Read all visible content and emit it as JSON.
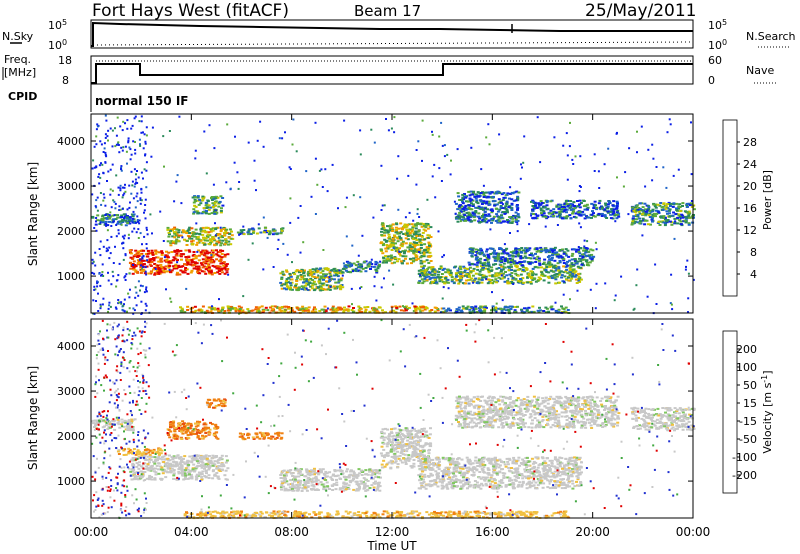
{
  "header": {
    "site": "Fort Hays West (fitACF)",
    "beam": "Beam 17",
    "date": "25/May/2011"
  },
  "top_panels": {
    "nsky": {
      "label": "N.Sky",
      "tick_top": "10^5",
      "tick_bottom": "10^0",
      "right_label": "N.Search",
      "right_tick_top": "10^5",
      "right_tick_bottom": "10^0"
    },
    "freq": {
      "label_line1": "Freq.",
      "label_line2": "[MHz]",
      "tick_top": "18",
      "tick_bottom": "8",
      "right_label": "Nave",
      "right_tick_top": "60",
      "right_tick_bottom": "0"
    },
    "cpid": {
      "label": "CPID",
      "value": "normal 150 IF"
    }
  },
  "chart_data": [
    {
      "type": "heatmap",
      "ylabel": "Slant Range [km]",
      "xlabel": "Time UT",
      "x_ticks": [
        "00:00",
        "04:00",
        "08:00",
        "12:00",
        "16:00",
        "20:00",
        "00:00"
      ],
      "y_ticks": [
        "1000",
        "2000",
        "3000",
        "4000"
      ],
      "y_tick_values": [
        1000,
        2000,
        3000,
        4000
      ],
      "ylim": [
        180,
        4600
      ],
      "xlim_hours": [
        0,
        24
      ],
      "colorbar": {
        "label": "Power [dB]",
        "ticks": [
          "4",
          "8",
          "12",
          "16",
          "20",
          "24",
          "28"
        ],
        "tick_values": [
          4,
          8,
          12,
          16,
          20,
          24,
          28
        ],
        "range": [
          0,
          32
        ],
        "colors": [
          "#0a1ee6",
          "#1e64c8",
          "#2a8a5a",
          "#5aaa3a",
          "#c8c800",
          "#f0a000",
          "#f06000",
          "#e00000"
        ]
      },
      "features": [
        {
          "t0": 0.0,
          "t1": 1.7,
          "r0": 2150,
          "r1": 2400,
          "level": 0.25
        },
        {
          "t0": 1.5,
          "t1": 5.4,
          "r0": 1050,
          "r1": 1600,
          "level": 0.9
        },
        {
          "t0": 3.0,
          "t1": 5.6,
          "r0": 1700,
          "r1": 2100,
          "level": 0.55
        },
        {
          "t0": 4.0,
          "t1": 5.2,
          "r0": 2400,
          "r1": 2800,
          "level": 0.35
        },
        {
          "t0": 5.8,
          "t1": 7.6,
          "r0": 1950,
          "r1": 2100,
          "level": 0.3
        },
        {
          "t0": 7.5,
          "t1": 10.0,
          "r0": 700,
          "r1": 1200,
          "level": 0.45
        },
        {
          "t0": 10.0,
          "t1": 11.5,
          "r0": 1100,
          "r1": 1350,
          "level": 0.25
        },
        {
          "t0": 11.5,
          "t1": 13.5,
          "r0": 1300,
          "r1": 2200,
          "level": 0.5
        },
        {
          "t0": 13.0,
          "t1": 19.5,
          "r0": 850,
          "r1": 1250,
          "level": 0.4
        },
        {
          "t0": 15.0,
          "t1": 20.0,
          "r0": 1250,
          "r1": 1650,
          "level": 0.25
        },
        {
          "t0": 14.5,
          "t1": 17.0,
          "r0": 2200,
          "r1": 2900,
          "level": 0.2
        },
        {
          "t0": 17.5,
          "t1": 21.0,
          "r0": 2300,
          "r1": 2700,
          "level": 0.2
        },
        {
          "t0": 21.5,
          "t1": 24.0,
          "r0": 2150,
          "r1": 2650,
          "level": 0.3
        },
        {
          "t0": 3.5,
          "t1": 14.0,
          "r0": 200,
          "r1": 350,
          "level": 0.65
        },
        {
          "t0": 14.0,
          "t1": 19.0,
          "r0": 200,
          "r1": 350,
          "level": 0.3
        }
      ]
    },
    {
      "type": "heatmap",
      "ylabel": "Slant Range [km]",
      "xlabel": "Time UT",
      "x_ticks": [
        "00:00",
        "04:00",
        "08:00",
        "12:00",
        "16:00",
        "20:00",
        "00:00"
      ],
      "y_ticks": [
        "1000",
        "2000",
        "3000",
        "4000"
      ],
      "y_tick_values": [
        1000,
        2000,
        3000,
        4000
      ],
      "ylim": [
        180,
        4600
      ],
      "xlim_hours": [
        0,
        24
      ],
      "colorbar": {
        "label": "Velocity [m s^-1]",
        "ticks": [
          "200",
          "100",
          "50",
          "15",
          "-15",
          "-50",
          "-100",
          "-200"
        ],
        "tick_values": [
          200,
          100,
          50,
          15,
          -15,
          -50,
          -100,
          -200
        ],
        "colors": [
          "#2030d0",
          "#3878c8",
          "#40a840",
          "#80c860",
          "#c8c8c8",
          "#f0c040",
          "#f08010",
          "#e85010",
          "#e00000"
        ]
      },
      "features": [
        {
          "t0": 0.0,
          "t1": 1.7,
          "r0": 2150,
          "r1": 2400,
          "kind": "gray"
        },
        {
          "t0": 1.5,
          "t1": 5.4,
          "r0": 1050,
          "r1": 1600,
          "kind": "gray"
        },
        {
          "t0": 3.0,
          "t1": 5.0,
          "r0": 1950,
          "r1": 2350,
          "kind": "orange"
        },
        {
          "t0": 4.5,
          "t1": 5.3,
          "r0": 2650,
          "r1": 2850,
          "kind": "orange"
        },
        {
          "t0": 5.8,
          "t1": 7.6,
          "r0": 1950,
          "r1": 2100,
          "kind": "orange"
        },
        {
          "t0": 7.5,
          "t1": 11.5,
          "r0": 800,
          "r1": 1300,
          "kind": "gray"
        },
        {
          "t0": 11.5,
          "t1": 13.5,
          "r0": 1300,
          "r1": 2200,
          "kind": "gray"
        },
        {
          "t0": 13.0,
          "t1": 19.5,
          "r0": 850,
          "r1": 1550,
          "kind": "gray"
        },
        {
          "t0": 14.5,
          "t1": 21.0,
          "r0": 2200,
          "r1": 2900,
          "kind": "gray"
        },
        {
          "t0": 21.5,
          "t1": 24.0,
          "r0": 2150,
          "r1": 2650,
          "kind": "gray"
        },
        {
          "t0": 1.0,
          "t1": 2.8,
          "r0": 1600,
          "r1": 1750,
          "kind": "yellow"
        },
        {
          "t0": 3.5,
          "t1": 14.0,
          "r0": 200,
          "r1": 350,
          "kind": "yellow"
        },
        {
          "t0": 14.0,
          "t1": 19.0,
          "r0": 200,
          "r1": 350,
          "kind": "yellow"
        }
      ]
    }
  ]
}
